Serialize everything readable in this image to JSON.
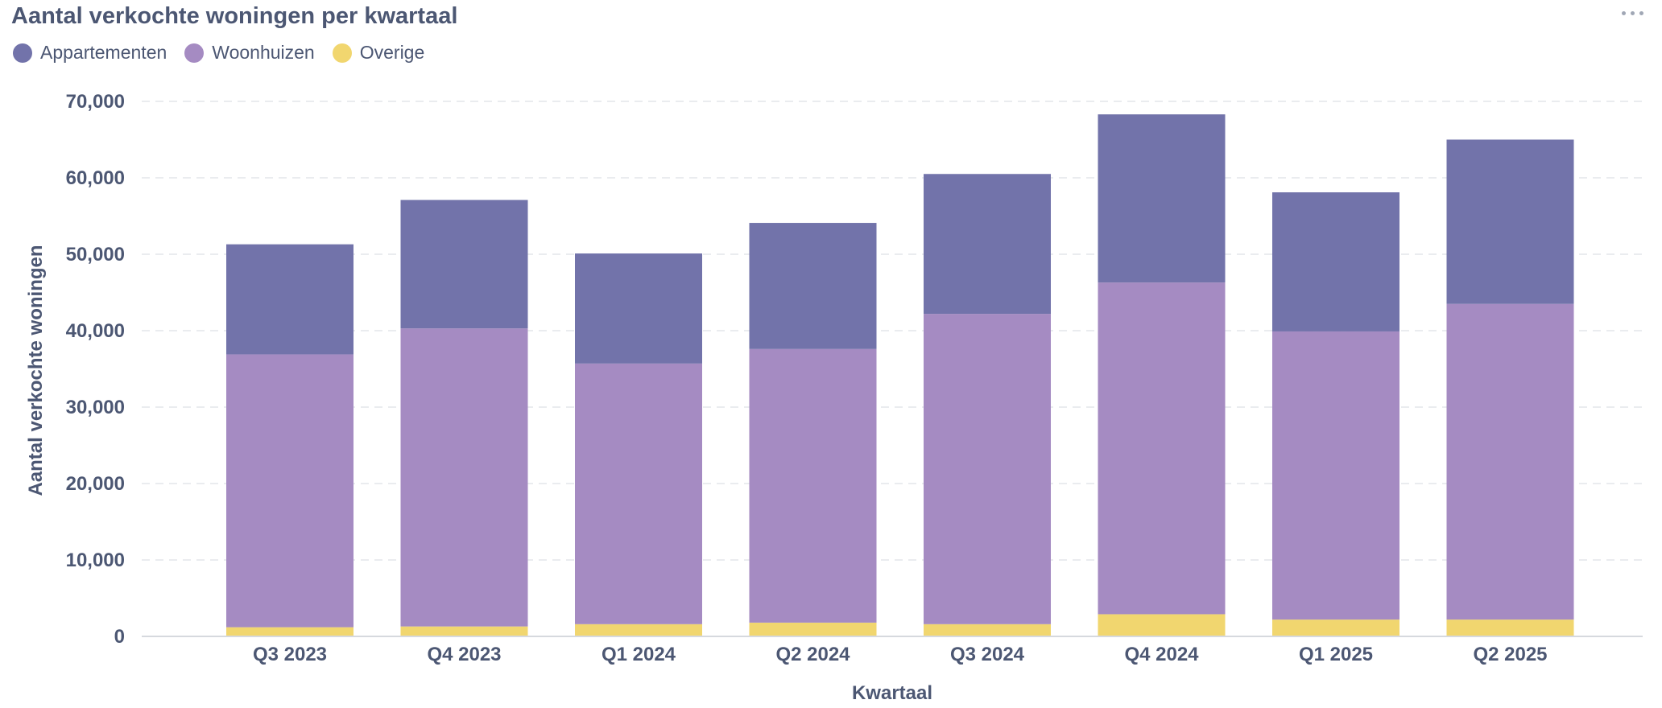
{
  "card": {
    "title": "Aantal verkochte woningen per kwartaal",
    "menu_icon": "ellipsis-icon"
  },
  "colors": {
    "text": "#4c5773",
    "grid": "#e4e6ea",
    "axis": "#d6d9de"
  },
  "chart_data": {
    "type": "bar",
    "stacked": true,
    "title": "Aantal verkochte woningen per kwartaal",
    "xlabel": "Kwartaal",
    "ylabel": "Aantal verkochte woningen",
    "ylim": [
      0,
      70000
    ],
    "yticks": [
      0,
      10000,
      20000,
      30000,
      40000,
      50000,
      60000,
      70000
    ],
    "ytick_labels": [
      "0",
      "10,000",
      "20,000",
      "30,000",
      "40,000",
      "50,000",
      "60,000",
      "70,000"
    ],
    "grid": true,
    "legend_position": "top-left",
    "categories": [
      "Q3 2023",
      "Q4 2023",
      "Q1 2024",
      "Q2 2024",
      "Q3 2024",
      "Q4 2024",
      "Q1 2025",
      "Q2 2025"
    ],
    "series": [
      {
        "name": "Overige",
        "color": "#f1d66f",
        "values": [
          1200,
          1300,
          1600,
          1800,
          1600,
          2900,
          2200,
          2200
        ]
      },
      {
        "name": "Woonhuizen",
        "color": "#a58bc2",
        "values": [
          35700,
          39000,
          34100,
          35800,
          40600,
          43400,
          37700,
          41300
        ]
      },
      {
        "name": "Appartementen",
        "color": "#7273aa",
        "values": [
          14400,
          16800,
          14400,
          16500,
          18300,
          22000,
          18200,
          21500
        ]
      }
    ],
    "legend_order": [
      "Appartementen",
      "Woonhuizen",
      "Overige"
    ]
  }
}
